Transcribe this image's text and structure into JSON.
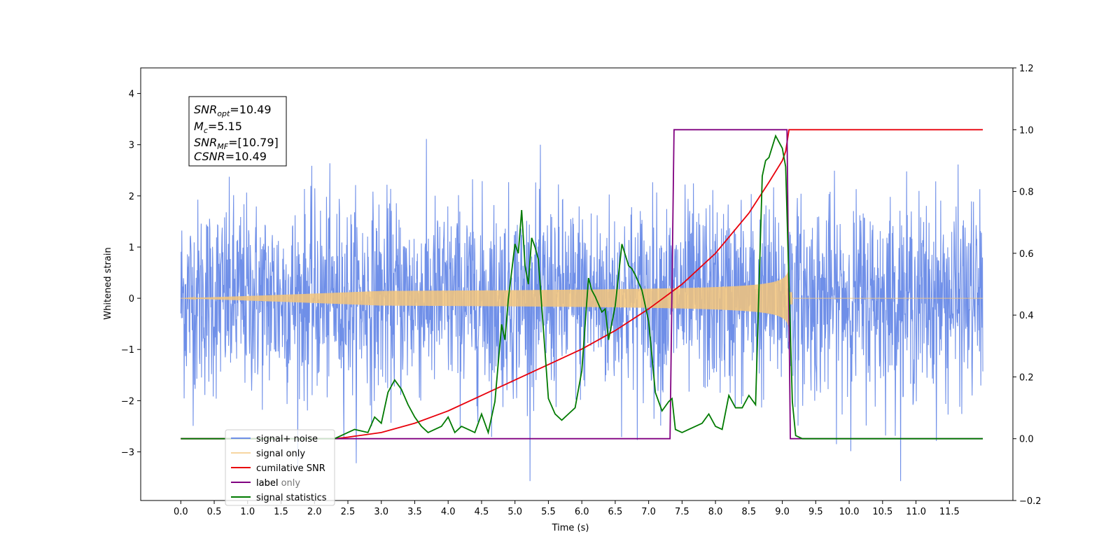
{
  "chart_data": {
    "type": "line",
    "xlabel": "Time (s)",
    "ylabel": "Whitened strain",
    "xlim": [
      -0.6,
      12.45
    ],
    "ylim": [
      -3.95,
      4.5
    ],
    "ylim_right": [
      -0.2,
      1.2
    ],
    "x_ticks": [
      "0.0",
      "0.5",
      "1.0",
      "1.5",
      "2.0",
      "2.5",
      "3.0",
      "3.5",
      "4.0",
      "4.5",
      "5.0",
      "5.5",
      "6.0",
      "6.5",
      "7.0",
      "7.5",
      "8.0",
      "8.5",
      "9.0",
      "9.5",
      "10.0",
      "10.5",
      "11.0",
      "11.5"
    ],
    "y_ticks_left": [
      "−3",
      "−2",
      "−1",
      "0",
      "1",
      "2",
      "3",
      "4"
    ],
    "y_ticks_right": [
      "−0.2",
      "0.0",
      "0.2",
      "0.4",
      "0.6",
      "0.8",
      "1.0",
      "1.2"
    ],
    "annotation": {
      "snr_opt": "10.49",
      "chirp_mass": "5.15",
      "snr_mf": "[10.79]",
      "csnr": "10.49"
    },
    "legend_position": "lower-left",
    "series": [
      {
        "name": "signal+ noise",
        "color": "#6f8fe8",
        "axis": "left",
        "kind": "noise",
        "x_range": [
          0.0,
          12.0
        ],
        "std": 0.95,
        "max": 4.12,
        "min": -3.57
      },
      {
        "name": "signal only",
        "color": "#f5c57a",
        "axis": "left",
        "kind": "chirp",
        "x_range": [
          0.0,
          12.0
        ],
        "merger_time": 9.1,
        "peak_amplitude": 0.6
      },
      {
        "name": "cumilative SNR",
        "color": "#e8000b",
        "axis": "right",
        "x": [
          0.0,
          2.3,
          2.5,
          3.0,
          3.5,
          4.0,
          4.5,
          5.0,
          5.5,
          6.0,
          6.5,
          7.0,
          7.5,
          8.0,
          8.5,
          8.8,
          9.0,
          9.05,
          9.1,
          12.0
        ],
        "values": [
          0.0,
          0.0,
          0.005,
          0.02,
          0.05,
          0.09,
          0.14,
          0.19,
          0.24,
          0.29,
          0.35,
          0.42,
          0.5,
          0.6,
          0.73,
          0.83,
          0.9,
          0.93,
          1.0,
          1.0
        ]
      },
      {
        "name": "label",
        "color": "#800080",
        "axis": "right",
        "x": [
          0.0,
          7.32,
          7.38,
          9.07,
          9.12,
          12.0
        ],
        "values": [
          0.0,
          0.0,
          1.0,
          1.0,
          0.0,
          0.0
        ]
      },
      {
        "name": "label only",
        "color": "#9e9e9e",
        "axis": "right",
        "x": [],
        "values": []
      },
      {
        "name": "signal statistics",
        "color": "#007a00",
        "axis": "right",
        "x": [
          0.0,
          2.3,
          2.6,
          2.8,
          2.9,
          3.0,
          3.1,
          3.2,
          3.3,
          3.4,
          3.5,
          3.6,
          3.7,
          3.8,
          3.9,
          4.0,
          4.1,
          4.2,
          4.3,
          4.4,
          4.5,
          4.6,
          4.7,
          4.8,
          4.85,
          4.9,
          5.0,
          5.05,
          5.1,
          5.15,
          5.2,
          5.25,
          5.3,
          5.35,
          5.5,
          5.6,
          5.7,
          5.8,
          5.9,
          6.0,
          6.1,
          6.15,
          6.2,
          6.3,
          6.35,
          6.4,
          6.5,
          6.6,
          6.7,
          6.75,
          6.8,
          6.9,
          7.0,
          7.1,
          7.2,
          7.3,
          7.35,
          7.4,
          7.5,
          7.6,
          7.7,
          7.8,
          7.9,
          8.0,
          8.1,
          8.2,
          8.3,
          8.4,
          8.5,
          8.6,
          8.7,
          8.75,
          8.8,
          8.9,
          9.0,
          9.05,
          9.1,
          9.15,
          9.2,
          9.3,
          9.4,
          12.0
        ],
        "values": [
          0.0,
          0.0,
          0.03,
          0.02,
          0.07,
          0.05,
          0.15,
          0.19,
          0.16,
          0.11,
          0.07,
          0.04,
          0.02,
          0.03,
          0.04,
          0.07,
          0.02,
          0.04,
          0.03,
          0.02,
          0.08,
          0.02,
          0.12,
          0.37,
          0.32,
          0.45,
          0.63,
          0.6,
          0.74,
          0.56,
          0.5,
          0.65,
          0.62,
          0.58,
          0.13,
          0.08,
          0.06,
          0.08,
          0.1,
          0.22,
          0.52,
          0.48,
          0.46,
          0.41,
          0.42,
          0.32,
          0.43,
          0.63,
          0.56,
          0.55,
          0.53,
          0.48,
          0.38,
          0.15,
          0.09,
          0.12,
          0.13,
          0.03,
          0.02,
          0.03,
          0.04,
          0.05,
          0.08,
          0.04,
          0.03,
          0.14,
          0.1,
          0.1,
          0.14,
          0.11,
          0.85,
          0.9,
          0.91,
          0.98,
          0.94,
          0.88,
          0.5,
          0.12,
          0.01,
          0.0,
          0.0,
          0.0
        ]
      }
    ]
  }
}
